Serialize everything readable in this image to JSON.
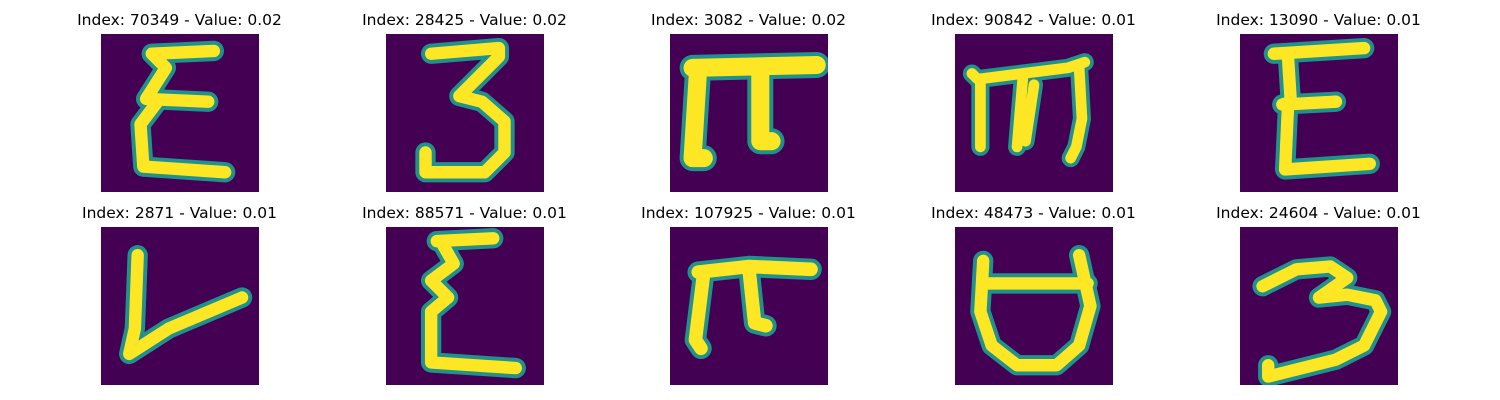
{
  "figure": {
    "colormap": "viridis",
    "colors": {
      "background": "#440154",
      "stroke_edge": "#21918c",
      "stroke_core": "#fde725"
    },
    "panels": [
      {
        "title": "Index: 70349 - Value: 0.02",
        "glyph": "epsilon-like"
      },
      {
        "title": "Index: 28425 - Value: 0.02",
        "glyph": "digit-3-like"
      },
      {
        "title": "Index: 3082 - Value: 0.02",
        "glyph": "pi-like"
      },
      {
        "title": "Index: 90842 - Value: 0.01",
        "glyph": "m-like"
      },
      {
        "title": "Index: 13090 - Value: 0.01",
        "glyph": "epsilon-like"
      },
      {
        "title": "Index: 2871 - Value: 0.01",
        "glyph": "v-like"
      },
      {
        "title": "Index: 88571 - Value: 0.01",
        "glyph": "epsilon-like"
      },
      {
        "title": "Index: 107925 - Value: 0.01",
        "glyph": "pi-like"
      },
      {
        "title": "Index: 48473 - Value: 0.01",
        "glyph": "u-like"
      },
      {
        "title": "Index: 24604 - Value: 0.01",
        "glyph": "digit-3-like"
      }
    ]
  }
}
